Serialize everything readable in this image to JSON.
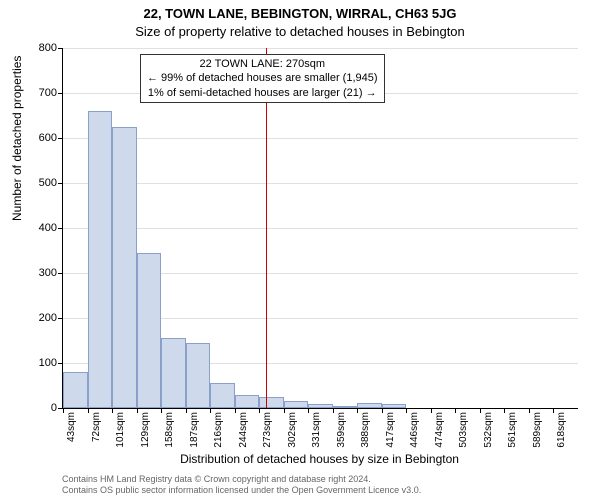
{
  "chart": {
    "type": "histogram",
    "title_line1": "22, TOWN LANE, BEBINGTON, WIRRAL, CH63 5JG",
    "title_line2": "Size of property relative to detached houses in Bebington",
    "xlabel": "Distribution of detached houses by size in Bebington",
    "ylabel": "Number of detached properties",
    "title_fontsize": 13,
    "label_fontsize": 12,
    "tick_fontsize": 11,
    "background_color": "#ffffff",
    "grid_color": "#e0e0e0",
    "bar_fill": "#cfd9ec",
    "bar_border": "#8aa0c8",
    "marker_color": "#cc0000",
    "ylim": [
      0,
      800
    ],
    "ytick_step": 100,
    "yticks": [
      0,
      100,
      200,
      300,
      400,
      500,
      600,
      700,
      800
    ],
    "xtick_labels": [
      "43sqm",
      "72sqm",
      "101sqm",
      "129sqm",
      "158sqm",
      "187sqm",
      "216sqm",
      "244sqm",
      "273sqm",
      "302sqm",
      "331sqm",
      "359sqm",
      "388sqm",
      "417sqm",
      "446sqm",
      "474sqm",
      "503sqm",
      "532sqm",
      "561sqm",
      "589sqm",
      "618sqm"
    ],
    "bar_values": [
      80,
      660,
      625,
      345,
      155,
      145,
      55,
      30,
      25,
      15,
      10,
      5,
      12,
      10,
      0,
      0,
      0,
      0,
      0,
      0,
      0
    ],
    "bar_width_ratio": 1.0,
    "marker_value_sqm": 270,
    "x_min_sqm": 43,
    "x_max_sqm": 618
  },
  "annotation": {
    "line1": "22 TOWN LANE: 270sqm",
    "line2": "← 99% of detached houses are smaller (1,945)",
    "line3": "1% of semi-detached houses are larger (21) →",
    "border_color": "#333333",
    "fontsize": 11
  },
  "footer": {
    "line1": "Contains HM Land Registry data © Crown copyright and database right 2024.",
    "line2": "Contains OS public sector information licensed under the Open Government Licence v3.0.",
    "color": "#666666",
    "fontsize": 9
  }
}
